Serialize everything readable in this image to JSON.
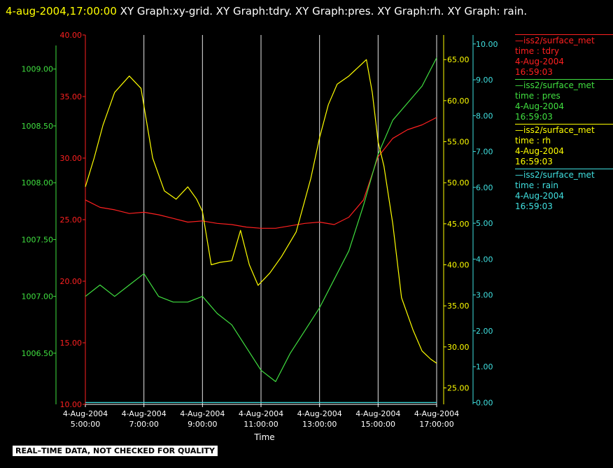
{
  "title": {
    "timestamp": "4-aug-2004,17:00:00",
    "text": "XY Graph:xy-grid.  XY Graph:tdry.  XY Graph:pres.  XY Graph:rh.  XY Graph: rain."
  },
  "legend": [
    {
      "name": "—iss2/surface_met",
      "var": "time : tdry",
      "date": "4-Aug-2004",
      "time": "16:59:03",
      "color": "#ff2020"
    },
    {
      "name": "—iss2/surface_met",
      "var": "time : pres",
      "date": "4-Aug-2004",
      "time": "16:59:03",
      "color": "#40e040"
    },
    {
      "name": "—iss2/surface_met",
      "var": "time : rh",
      "date": "4-Aug-2004",
      "time": "16:59:03",
      "color": "#ffff00"
    },
    {
      "name": "—iss2/surface_met",
      "var": "time : rain",
      "date": "4-Aug-2004",
      "time": "16:59:03",
      "color": "#40e0e0"
    }
  ],
  "disclaimer": "REAL–TIME DATA, NOT CHECKED FOR QUALITY",
  "chart_data": {
    "type": "line",
    "xlabel": "Time",
    "x_ticks": [
      {
        "date": "4-Aug-2004",
        "time": "5:00:00"
      },
      {
        "date": "4-Aug-2004",
        "time": "7:00:00"
      },
      {
        "date": "4-Aug-2004",
        "time": "9:00:00"
      },
      {
        "date": "4-Aug-2004",
        "time": "11:00:00"
      },
      {
        "date": "4-Aug-2004",
        "time": "13:00:00"
      },
      {
        "date": "4-Aug-2004",
        "time": "15:00:00"
      },
      {
        "date": "4-Aug-2004",
        "time": "17:00:00"
      }
    ],
    "xlim": [
      5,
      17
    ],
    "grid": "vertical",
    "axes": {
      "tdry": {
        "color": "#ff2020",
        "ylim": [
          10,
          40
        ],
        "ticks": [
          "10.00",
          "15.00",
          "20.00",
          "25.00",
          "30.00",
          "35.00",
          "40.00"
        ]
      },
      "pres": {
        "color": "#40e040",
        "ylim": [
          1006.05,
          1009.3
        ],
        "ticks": [
          "1006.50",
          "1007.00",
          "1007.50",
          "1008.00",
          "1008.50",
          "1009.00"
        ]
      },
      "rh": {
        "color": "#ffff00",
        "ylim": [
          23,
          68
        ],
        "ticks": [
          "25.00",
          "30.00",
          "35.00",
          "40.00",
          "45.00",
          "50.00",
          "55.00",
          "60.00",
          "65.00"
        ]
      },
      "rain": {
        "color": "#40e0e0",
        "ylim": [
          -0.05,
          10.25
        ],
        "ticks": [
          "0.00",
          "1.00",
          "2.00",
          "3.00",
          "4.00",
          "5.00",
          "6.00",
          "7.00",
          "8.00",
          "9.00",
          "10.00"
        ]
      }
    },
    "series": [
      {
        "key": "tdry",
        "color": "#ff2020",
        "x": [
          5.0,
          5.5,
          6.0,
          6.5,
          7.0,
          7.5,
          8.0,
          8.5,
          9.0,
          9.5,
          10.0,
          10.5,
          11.0,
          11.5,
          12.0,
          12.5,
          13.0,
          13.5,
          14.0,
          14.5,
          15.0,
          15.5,
          16.0,
          16.5,
          17.0
        ],
        "values": [
          26.6,
          26.0,
          25.8,
          25.5,
          25.6,
          25.4,
          25.1,
          24.8,
          24.9,
          24.7,
          24.6,
          24.4,
          24.3,
          24.3,
          24.5,
          24.7,
          24.8,
          24.6,
          25.2,
          26.6,
          30.1,
          31.6,
          32.3,
          32.7,
          33.3
        ]
      },
      {
        "key": "pres",
        "color": "#40e040",
        "x": [
          5.0,
          5.5,
          6.0,
          6.5,
          7.0,
          7.5,
          8.0,
          8.5,
          9.0,
          9.5,
          10.0,
          10.5,
          11.0,
          11.5,
          12.0,
          12.5,
          13.0,
          13.5,
          14.0,
          14.5,
          15.0,
          15.5,
          16.0,
          16.5,
          17.0
        ],
        "values": [
          1007.0,
          1007.1,
          1007.0,
          1007.1,
          1007.2,
          1007.0,
          1006.95,
          1006.95,
          1007.0,
          1006.85,
          1006.75,
          1006.55,
          1006.35,
          1006.25,
          1006.5,
          1006.7,
          1006.9,
          1007.15,
          1007.4,
          1007.8,
          1008.25,
          1008.55,
          1008.7,
          1008.85,
          1009.1
        ]
      },
      {
        "key": "rh",
        "color": "#ffff00",
        "x": [
          5.0,
          5.3,
          5.6,
          6.0,
          6.5,
          6.9,
          7.3,
          7.7,
          8.1,
          8.5,
          8.8,
          9.0,
          9.3,
          9.6,
          10.0,
          10.3,
          10.6,
          10.9,
          11.3,
          11.7,
          12.2,
          12.7,
          13.0,
          13.3,
          13.6,
          14.0,
          14.3,
          14.6,
          14.8,
          15.0,
          15.2,
          15.5,
          15.8,
          16.2,
          16.5,
          16.8,
          17.0
        ],
        "values": [
          49.5,
          53.0,
          57.0,
          61.0,
          63.0,
          61.5,
          53.0,
          49.0,
          48.0,
          49.5,
          48.0,
          46.5,
          40.0,
          40.3,
          40.5,
          44.2,
          40.0,
          37.5,
          39.0,
          41.0,
          44.0,
          50.5,
          55.5,
          59.5,
          62.0,
          63.0,
          64.0,
          65.0,
          61.0,
          55.0,
          52.0,
          45.0,
          36.0,
          32.0,
          29.5,
          28.5,
          28.0
        ]
      },
      {
        "key": "rain",
        "color": "#40e0e0",
        "x": [
          5.0,
          17.0
        ],
        "values": [
          0.0,
          0.0
        ]
      }
    ]
  }
}
